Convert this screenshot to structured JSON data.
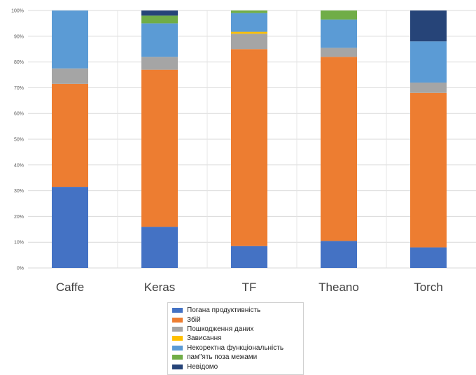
{
  "chart_data": {
    "type": "bar",
    "stacked": true,
    "categories": [
      "Caffe",
      "Keras",
      "TF",
      "Theano",
      "Torch"
    ],
    "ylim": [
      0,
      100
    ],
    "yticks": [
      "0%",
      "10%",
      "20%",
      "30%",
      "40%",
      "50%",
      "60%",
      "70%",
      "80%",
      "90%",
      "100%"
    ],
    "grid": true,
    "legend_position": "bottom",
    "series": [
      {
        "name": "Погана продуктивність",
        "color": "#4472C4",
        "values": [
          31.5,
          16,
          8.5,
          10.5,
          8
        ]
      },
      {
        "name": "Збій",
        "color": "#ED7D31",
        "values": [
          40,
          61,
          76.5,
          71.5,
          60
        ]
      },
      {
        "name": "Пошкодження даних",
        "color": "#A5A5A5",
        "values": [
          6,
          5,
          6,
          3.5,
          4
        ]
      },
      {
        "name": "Зависання",
        "color": "#FFC000",
        "values": [
          0,
          0,
          0.7,
          0,
          0
        ]
      },
      {
        "name": "Некоректна функціональність",
        "color": "#5B9BD5",
        "values": [
          22.5,
          13,
          7.3,
          11,
          16
        ]
      },
      {
        "name": "пам\"ять поза межами",
        "color": "#70AD47",
        "values": [
          0,
          3,
          1,
          3.5,
          0
        ]
      },
      {
        "name": "Невідомо",
        "color": "#264478",
        "values": [
          0,
          2,
          0,
          0,
          12
        ]
      }
    ]
  }
}
